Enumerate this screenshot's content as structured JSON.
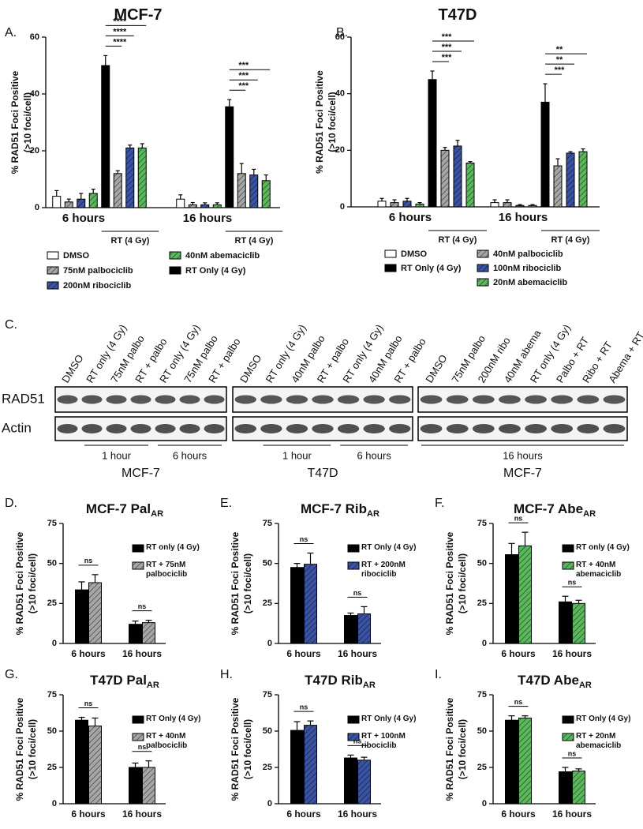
{
  "chart_data": [
    {
      "type": "bar",
      "panel": "A.",
      "title": "MCF-7",
      "ylabel": [
        "% RAD51 Foci Positive",
        "(>10 foci/cell)"
      ],
      "categories": [
        "6 hours",
        "16 hours"
      ],
      "ylim": [
        0,
        60
      ],
      "yticks": [
        0,
        20,
        40,
        60
      ],
      "group_note": "RT (4 Gy)",
      "series": [
        {
          "name": "DMSO",
          "color": "#ffffff",
          "hatch": false,
          "values": [
            4,
            3
          ],
          "errors": [
            2,
            1.5
          ]
        },
        {
          "name": "75nM palbociclib",
          "color": "#a6a6a6",
          "hatch": true,
          "values": [
            2,
            1
          ],
          "errors": [
            1,
            0.8
          ]
        },
        {
          "name": "200nM ribociclib",
          "color": "#3a53a4",
          "hatch": true,
          "values": [
            3,
            1
          ],
          "errors": [
            2,
            0.7
          ]
        },
        {
          "name": "40nM abemaciclib",
          "color": "#5bb85d",
          "hatch": true,
          "values": [
            5,
            1
          ],
          "errors": [
            1.5,
            0.7
          ]
        },
        {
          "name": "RT Only (4 Gy)",
          "color": "#000000",
          "hatch": false,
          "values": [
            50,
            35.5
          ],
          "errors": [
            3.5,
            2.5
          ]
        },
        {
          "color": "#a6a6a6",
          "hatch": true,
          "values": [
            12,
            12
          ],
          "errors": [
            1,
            3.5
          ]
        },
        {
          "color": "#3a53a4",
          "hatch": true,
          "values": [
            21,
            11.5
          ],
          "errors": [
            1,
            2
          ]
        },
        {
          "color": "#5bb85d",
          "hatch": true,
          "values": [
            21,
            9.5
          ],
          "errors": [
            1.5,
            2
          ]
        }
      ],
      "legend_columns": [
        [
          0,
          1,
          2
        ],
        [
          3,
          4
        ]
      ],
      "significance": [
        [
          "****",
          "****",
          "****"
        ],
        [
          "***",
          "***",
          "***"
        ]
      ]
    },
    {
      "type": "bar",
      "panel": "B.",
      "title": "T47D",
      "ylabel": [
        "% RAD51 Foci Positive",
        "(>10 foci/cell)"
      ],
      "categories": [
        "6 hours",
        "16 hours"
      ],
      "ylim": [
        0,
        60
      ],
      "yticks": [
        0,
        20,
        40,
        60
      ],
      "group_note": "RT (4 Gy)",
      "series": [
        {
          "name": "DMSO",
          "color": "#ffffff",
          "hatch": false,
          "values": [
            2,
            1.5
          ],
          "errors": [
            1,
            1
          ]
        },
        {
          "name": "40nM palbociclib",
          "color": "#a6a6a6",
          "hatch": true,
          "values": [
            1.5,
            1.5
          ],
          "errors": [
            1,
            1
          ]
        },
        {
          "name": "100nM ribociclib",
          "color": "#3a53a4",
          "hatch": true,
          "values": [
            2,
            0.5
          ],
          "errors": [
            1,
            0.3
          ]
        },
        {
          "name": "20nM abemaciclib",
          "color": "#5bb85d",
          "hatch": true,
          "values": [
            1,
            0.5
          ],
          "errors": [
            0.5,
            0.3
          ]
        },
        {
          "name": "RT Only (4 Gy)",
          "color": "#000000",
          "hatch": false,
          "values": [
            45,
            37
          ],
          "errors": [
            3,
            6.5
          ]
        },
        {
          "color": "#a6a6a6",
          "hatch": true,
          "values": [
            20,
            14.5
          ],
          "errors": [
            1,
            2.5
          ]
        },
        {
          "color": "#3a53a4",
          "hatch": true,
          "values": [
            21.5,
            19
          ],
          "errors": [
            2,
            0.5
          ]
        },
        {
          "color": "#5bb85d",
          "hatch": true,
          "values": [
            15.5,
            19.5
          ],
          "errors": [
            0.5,
            1
          ]
        }
      ],
      "legend_columns": [
        [
          0,
          4
        ],
        [
          1,
          2,
          3
        ]
      ],
      "significance": [
        [
          "***",
          "***",
          "***"
        ],
        [
          "***",
          "**",
          "**"
        ]
      ]
    },
    {
      "type": "bar",
      "panel": "D.",
      "title": "MCF-7 Pal",
      "title_sub": "AR",
      "ylabel": [
        "% RAD51 Foci Positive",
        "(>10 foci/cell)"
      ],
      "categories": [
        "6 hours",
        "16 hours"
      ],
      "ylim": [
        0,
        75
      ],
      "yticks": [
        0,
        25,
        50,
        75
      ],
      "series": [
        {
          "name": "RT only (4 Gy)",
          "color": "#000000",
          "hatch": false,
          "values": [
            33.5,
            12
          ],
          "errors": [
            5,
            2
          ]
        },
        {
          "name": "RT + 75nM palbociclib",
          "color": "#a6a6a6",
          "hatch": true,
          "values": [
            38,
            13
          ],
          "errors": [
            5,
            1.5
          ]
        }
      ],
      "legend_columns": [
        [
          0,
          1
        ]
      ],
      "significance": [
        [
          "ns"
        ],
        [
          "ns"
        ]
      ]
    },
    {
      "type": "bar",
      "panel": "E.",
      "title": "MCF-7 Rib",
      "title_sub": "AR",
      "ylabel": [
        "% RAD51 Foci Positive",
        "(>10 foci/cell)"
      ],
      "categories": [
        "6 hours",
        "16 hours"
      ],
      "ylim": [
        0,
        75
      ],
      "yticks": [
        0,
        25,
        50,
        75
      ],
      "series": [
        {
          "name": "RT Only (4 Gy)",
          "color": "#000000",
          "hatch": false,
          "values": [
            47.5,
            17.5
          ],
          "errors": [
            2.5,
            1.5
          ]
        },
        {
          "name": "RT + 200nM ribociclib",
          "color": "#3a53a4",
          "hatch": true,
          "values": [
            49.5,
            18.5
          ],
          "errors": [
            7,
            4.5
          ]
        }
      ],
      "legend_columns": [
        [
          0,
          1
        ]
      ],
      "significance": [
        [
          "ns"
        ],
        [
          "ns"
        ]
      ]
    },
    {
      "type": "bar",
      "panel": "F.",
      "title": "MCF-7 Abe",
      "title_sub": "AR",
      "ylabel": [
        "% RAD51 Foci Positive",
        "(>10 foci/cell)"
      ],
      "categories": [
        "6 hours",
        "16 hours"
      ],
      "ylim": [
        0,
        75
      ],
      "yticks": [
        0,
        25,
        50,
        75
      ],
      "series": [
        {
          "name": "RT only (4 Gy)",
          "color": "#000000",
          "hatch": false,
          "values": [
            55.5,
            26
          ],
          "errors": [
            7,
            3.5
          ]
        },
        {
          "name": "RT + 40nM abemaciclib",
          "color": "#5bb85d",
          "hatch": true,
          "values": [
            61,
            25
          ],
          "errors": [
            8.5,
            2
          ]
        }
      ],
      "legend_columns": [
        [
          0,
          1
        ]
      ],
      "significance": [
        [
          "ns"
        ],
        [
          "ns"
        ]
      ]
    },
    {
      "type": "bar",
      "panel": "G.",
      "title": "T47D Pal",
      "title_sub": "AR",
      "ylabel": [
        "% RAD51 Foci Positive",
        "(>10 foci/cell)"
      ],
      "categories": [
        "6 hours",
        "16 hours"
      ],
      "ylim": [
        0,
        75
      ],
      "yticks": [
        0,
        25,
        50,
        75
      ],
      "series": [
        {
          "name": "RT Only (4 Gy)",
          "color": "#000000",
          "hatch": false,
          "values": [
            57.5,
            25
          ],
          "errors": [
            2,
            3
          ]
        },
        {
          "name": "RT + 40nM palbociclib",
          "color": "#a6a6a6",
          "hatch": true,
          "values": [
            53.5,
            25
          ],
          "errors": [
            5.5,
            4.5
          ]
        }
      ],
      "legend_columns": [
        [
          0,
          1
        ]
      ],
      "significance": [
        [
          "ns"
        ],
        [
          "ns"
        ]
      ]
    },
    {
      "type": "bar",
      "panel": "H.",
      "title": "T47D Rib",
      "title_sub": "AR",
      "ylabel": [
        "% RAD51 Foci Positive",
        "(>10 foci/cell)"
      ],
      "categories": [
        "6 hours",
        "16 hours"
      ],
      "ylim": [
        0,
        75
      ],
      "yticks": [
        0,
        25,
        50,
        75
      ],
      "series": [
        {
          "name": "RT Only (4 Gy)",
          "color": "#000000",
          "hatch": false,
          "values": [
            50.5,
            31.5
          ],
          "errors": [
            6,
            2
          ]
        },
        {
          "name": "RT + 100nM ribociclib",
          "color": "#3a53a4",
          "hatch": true,
          "values": [
            54,
            30
          ],
          "errors": [
            3,
            2
          ]
        }
      ],
      "legend_columns": [
        [
          0,
          1
        ]
      ],
      "significance": [
        [
          "ns"
        ],
        [
          "ns"
        ]
      ]
    },
    {
      "type": "bar",
      "panel": "I.",
      "title": "T47D Abe",
      "title_sub": "AR",
      "ylabel": [
        "% RAD51 Foci Positive",
        "(>10 foci/cell)"
      ],
      "categories": [
        "6 hours",
        "16 hours"
      ],
      "ylim": [
        0,
        75
      ],
      "yticks": [
        0,
        25,
        50,
        75
      ],
      "series": [
        {
          "name": "RT Only (4 Gy)",
          "color": "#000000",
          "hatch": false,
          "values": [
            57.5,
            22
          ],
          "errors": [
            3,
            3
          ]
        },
        {
          "name": "RT + 20nM abemaciclib",
          "color": "#5bb85d",
          "hatch": true,
          "values": [
            59,
            22.5
          ],
          "errors": [
            1.5,
            1.5
          ]
        }
      ],
      "legend_columns": [
        [
          0,
          1
        ]
      ],
      "significance": [
        [
          "ns"
        ],
        [
          "ns"
        ]
      ]
    }
  ],
  "blot": {
    "panel": "C.",
    "row_labels": [
      "RAD51",
      "Actin"
    ],
    "blots": [
      {
        "lanes": [
          "DMSO",
          "RT only (4 Gy)",
          "75nM palbo",
          "RT + palbo",
          "RT only (4 Gy)",
          "75nM palbo",
          "RT + palbo"
        ],
        "timepoints": [
          "1 hour",
          "6 hours"
        ],
        "cell_line": "MCF-7"
      },
      {
        "lanes": [
          "DMSO",
          "RT only (4 Gy)",
          "40nM palbo",
          "RT + palbo",
          "RT only (4 Gy)",
          "40nM palbo",
          "RT + palbo"
        ],
        "timepoints": [
          "1 hour",
          "6 hours"
        ],
        "cell_line": "T47D"
      },
      {
        "lanes": [
          "DMSO",
          "75nM palbo",
          "200nM ribo",
          "40nM abema",
          "RT only (4 Gy)",
          "Palbo + RT",
          "Ribo + RT",
          "Abema + RT"
        ],
        "timepoints": [
          "16 hours"
        ],
        "cell_line": "MCF-7"
      }
    ]
  }
}
